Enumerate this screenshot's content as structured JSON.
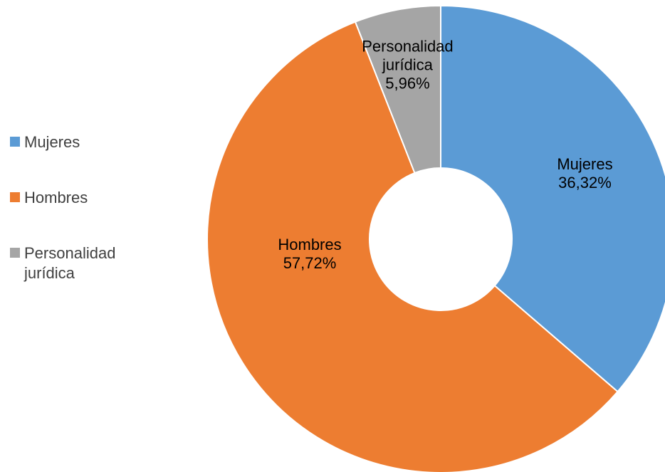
{
  "chart_data": {
    "type": "pie",
    "variant": "donut",
    "legend_position": "left",
    "categories": [
      "Mujeres",
      "Hombres",
      "Personalidad jurídica"
    ],
    "values": [
      36.32,
      57.72,
      5.96
    ],
    "value_labels": [
      "36,32%",
      "57,72%",
      "5,96%"
    ],
    "colors": [
      "#5B9BD5",
      "#ED7D31",
      "#A5A5A5"
    ],
    "slice_label_lines": [
      [
        "Mujeres",
        "36,32%"
      ],
      [
        "Hombres",
        "57,72%"
      ],
      [
        "Personalidad",
        "jurídica",
        "5,96%"
      ]
    ],
    "legend_labels": [
      "Mujeres",
      "Hombres",
      "Personalidad\njurídica"
    ]
  }
}
